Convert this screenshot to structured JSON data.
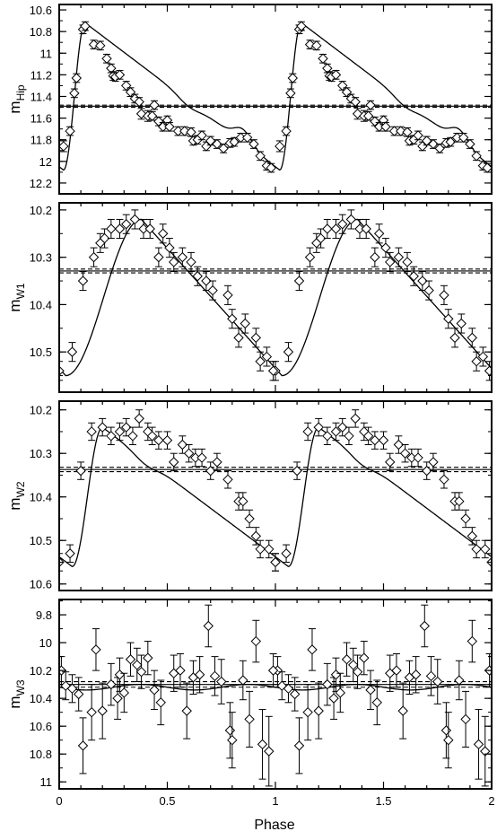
{
  "figure": {
    "xlabel": "Phase",
    "x_tick_labels": [
      "0",
      "0.5",
      "1",
      "1.5",
      "2"
    ]
  },
  "chart_data": [
    {
      "type": "scatter",
      "ylabel_main": "m",
      "ylabel_sub": "Hip",
      "xlim": [
        0,
        2
      ],
      "ylim": [
        12.3,
        10.55
      ],
      "y_inverted": true,
      "yticks": [
        10.6,
        10.8,
        11,
        11.2,
        11.4,
        11.6,
        11.8,
        12,
        12.2
      ],
      "ytick_labels": [
        "10.6",
        "10.8",
        "11",
        "11.2",
        "11.4",
        "11.6",
        "11.8",
        "12",
        "12.2"
      ],
      "mean_line": 11.49,
      "mean_band": 0.01,
      "curve": {
        "min_mag": 10.72,
        "max_mag": 12.08,
        "max_phase": 0.12,
        "rise_width": 0.1,
        "extra_bumps": [
          {
            "phase": 0.85,
            "amp": -0.12,
            "width": 0.04
          },
          {
            "phase": 0.6,
            "amp": 0.05,
            "width": 0.05
          }
        ]
      },
      "points": [
        [
          0.02,
          11.86,
          0.05
        ],
        [
          0.05,
          11.72,
          0.04
        ],
        [
          0.07,
          11.37,
          0.04
        ],
        [
          0.08,
          11.23,
          0.04
        ],
        [
          0.11,
          10.78,
          0.04
        ],
        [
          0.12,
          10.75,
          0.04
        ],
        [
          0.16,
          10.92,
          0.04
        ],
        [
          0.19,
          10.93,
          0.04
        ],
        [
          0.22,
          11.05,
          0.04
        ],
        [
          0.24,
          11.14,
          0.04
        ],
        [
          0.25,
          11.21,
          0.04
        ],
        [
          0.26,
          11.22,
          0.04
        ],
        [
          0.28,
          11.2,
          0.04
        ],
        [
          0.31,
          11.3,
          0.04
        ],
        [
          0.33,
          11.36,
          0.04
        ],
        [
          0.35,
          11.42,
          0.04
        ],
        [
          0.37,
          11.45,
          0.04
        ],
        [
          0.38,
          11.56,
          0.05
        ],
        [
          0.41,
          11.58,
          0.05
        ],
        [
          0.43,
          11.58,
          0.04
        ],
        [
          0.44,
          11.48,
          0.04
        ],
        [
          0.46,
          11.63,
          0.04
        ],
        [
          0.48,
          11.68,
          0.04
        ],
        [
          0.5,
          11.62,
          0.04
        ],
        [
          0.51,
          11.68,
          0.04
        ],
        [
          0.55,
          11.72,
          0.04
        ],
        [
          0.58,
          11.72,
          0.04
        ],
        [
          0.61,
          11.73,
          0.04
        ],
        [
          0.62,
          11.81,
          0.04
        ],
        [
          0.64,
          11.8,
          0.04
        ],
        [
          0.66,
          11.76,
          0.04
        ],
        [
          0.68,
          11.86,
          0.04
        ],
        [
          0.7,
          11.81,
          0.04
        ],
        [
          0.73,
          11.84,
          0.04
        ],
        [
          0.76,
          11.88,
          0.04
        ],
        [
          0.79,
          11.83,
          0.04
        ],
        [
          0.81,
          11.82,
          0.04
        ],
        [
          0.84,
          11.78,
          0.04
        ],
        [
          0.87,
          11.78,
          0.04
        ],
        [
          0.9,
          11.84,
          0.04
        ],
        [
          0.93,
          11.95,
          0.04
        ],
        [
          0.96,
          12.04,
          0.04
        ],
        [
          0.98,
          12.06,
          0.04
        ]
      ]
    },
    {
      "type": "scatter",
      "ylabel_main": "m",
      "ylabel_sub": "W1",
      "xlim": [
        0,
        2
      ],
      "ylim": [
        10.585,
        10.185
      ],
      "y_inverted": true,
      "yticks": [
        10.2,
        10.3,
        10.4,
        10.5
      ],
      "ytick_labels": [
        "10.2",
        "10.3",
        "10.4",
        "10.5"
      ],
      "mean_line": 10.329,
      "mean_band": 0.004,
      "curve": {
        "min_mag": 10.22,
        "max_mag": 10.55,
        "max_phase": 0.38,
        "rise_width": 0.35,
        "extra_bumps": []
      },
      "points": [
        [
          0.0,
          10.54,
          0.02
        ],
        [
          0.06,
          10.5,
          0.02
        ],
        [
          0.11,
          10.35,
          0.02
        ],
        [
          0.16,
          10.3,
          0.02
        ],
        [
          0.19,
          10.27,
          0.02
        ],
        [
          0.21,
          10.26,
          0.02
        ],
        [
          0.24,
          10.24,
          0.02
        ],
        [
          0.28,
          10.24,
          0.02
        ],
        [
          0.31,
          10.23,
          0.02
        ],
        [
          0.35,
          10.22,
          0.02
        ],
        [
          0.39,
          10.24,
          0.02
        ],
        [
          0.42,
          10.24,
          0.02
        ],
        [
          0.46,
          10.3,
          0.02
        ],
        [
          0.48,
          10.25,
          0.02
        ],
        [
          0.51,
          10.28,
          0.02
        ],
        [
          0.53,
          10.31,
          0.02
        ],
        [
          0.57,
          10.3,
          0.02
        ],
        [
          0.61,
          10.31,
          0.02
        ],
        [
          0.64,
          10.34,
          0.02
        ],
        [
          0.68,
          10.35,
          0.02
        ],
        [
          0.71,
          10.37,
          0.02
        ],
        [
          0.78,
          10.38,
          0.02
        ],
        [
          0.8,
          10.43,
          0.02
        ],
        [
          0.83,
          10.47,
          0.02
        ],
        [
          0.86,
          10.44,
          0.02
        ],
        [
          0.91,
          10.47,
          0.02
        ],
        [
          0.93,
          10.52,
          0.02
        ],
        [
          0.96,
          10.51,
          0.02
        ],
        [
          0.99,
          10.54,
          0.02
        ]
      ]
    },
    {
      "type": "scatter",
      "ylabel_main": "m",
      "ylabel_sub": "W2",
      "xlim": [
        0,
        2
      ],
      "ylim": [
        10.615,
        10.18
      ],
      "y_inverted": true,
      "yticks": [
        10.2,
        10.3,
        10.4,
        10.5,
        10.6
      ],
      "ytick_labels": [
        "10.2",
        "10.3",
        "10.4",
        "10.5",
        "10.6"
      ],
      "mean_line": 10.337,
      "mean_band": 0.005,
      "curve": {
        "min_mag": 10.24,
        "max_mag": 10.56,
        "max_phase": 0.2,
        "rise_width": 0.14,
        "extra_bumps": [
          {
            "phase": 0.4,
            "amp": 0.012,
            "width": 0.05
          }
        ]
      },
      "points": [
        [
          0.0,
          10.55,
          0.02
        ],
        [
          0.05,
          10.53,
          0.02
        ],
        [
          0.1,
          10.34,
          0.02
        ],
        [
          0.15,
          10.25,
          0.02
        ],
        [
          0.2,
          10.24,
          0.02
        ],
        [
          0.24,
          10.26,
          0.02
        ],
        [
          0.28,
          10.25,
          0.02
        ],
        [
          0.31,
          10.24,
          0.02
        ],
        [
          0.34,
          10.26,
          0.02
        ],
        [
          0.37,
          10.22,
          0.02
        ],
        [
          0.41,
          10.25,
          0.02
        ],
        [
          0.43,
          10.26,
          0.02
        ],
        [
          0.46,
          10.27,
          0.02
        ],
        [
          0.5,
          10.27,
          0.02
        ],
        [
          0.53,
          10.32,
          0.02
        ],
        [
          0.57,
          10.28,
          0.02
        ],
        [
          0.6,
          10.3,
          0.02
        ],
        [
          0.63,
          10.31,
          0.02
        ],
        [
          0.66,
          10.31,
          0.02
        ],
        [
          0.7,
          10.34,
          0.02
        ],
        [
          0.73,
          10.32,
          0.02
        ],
        [
          0.78,
          10.36,
          0.02
        ],
        [
          0.83,
          10.41,
          0.02
        ],
        [
          0.85,
          10.41,
          0.02
        ],
        [
          0.88,
          10.45,
          0.02
        ],
        [
          0.91,
          10.49,
          0.02
        ],
        [
          0.93,
          10.52,
          0.02
        ],
        [
          0.97,
          10.52,
          0.02
        ],
        [
          1.0,
          10.55,
          0.02
        ]
      ]
    },
    {
      "type": "scatter",
      "ylabel_main": "m",
      "ylabel_sub": "W3",
      "xlim": [
        0,
        2
      ],
      "ylim": [
        11.05,
        9.69
      ],
      "y_inverted": true,
      "yticks": [
        9.8,
        10,
        10.2,
        10.4,
        10.6,
        10.8,
        11
      ],
      "ytick_labels": [
        "9.8",
        "10",
        "10.2",
        "10.4",
        "10.6",
        "10.8",
        "11"
      ],
      "mean_line": 10.3,
      "mean_band": 0.02,
      "curve": {
        "type": "flat",
        "base": 10.32,
        "amp": 0.02
      },
      "points": [
        [
          0.01,
          10.2,
          0.1
        ],
        [
          0.03,
          10.31,
          0.1
        ],
        [
          0.06,
          10.33,
          0.1
        ],
        [
          0.09,
          10.37,
          0.12
        ],
        [
          0.11,
          10.74,
          0.2
        ],
        [
          0.15,
          10.5,
          0.2
        ],
        [
          0.17,
          10.05,
          0.15
        ],
        [
          0.2,
          10.49,
          0.2
        ],
        [
          0.24,
          10.3,
          0.15
        ],
        [
          0.27,
          10.4,
          0.15
        ],
        [
          0.28,
          10.23,
          0.12
        ],
        [
          0.3,
          10.36,
          0.14
        ],
        [
          0.33,
          10.12,
          0.12
        ],
        [
          0.36,
          10.16,
          0.12
        ],
        [
          0.38,
          10.21,
          0.12
        ],
        [
          0.41,
          10.11,
          0.12
        ],
        [
          0.44,
          10.34,
          0.14
        ],
        [
          0.47,
          10.43,
          0.16
        ],
        [
          0.53,
          10.22,
          0.13
        ],
        [
          0.56,
          10.2,
          0.12
        ],
        [
          0.59,
          10.49,
          0.2
        ],
        [
          0.62,
          10.25,
          0.12
        ],
        [
          0.65,
          10.23,
          0.13
        ],
        [
          0.69,
          9.88,
          0.15
        ],
        [
          0.72,
          10.24,
          0.14
        ],
        [
          0.75,
          10.28,
          0.16
        ],
        [
          0.79,
          10.63,
          0.2
        ],
        [
          0.8,
          10.7,
          0.2
        ],
        [
          0.85,
          10.27,
          0.14
        ],
        [
          0.88,
          10.55,
          0.2
        ],
        [
          0.91,
          9.99,
          0.15
        ],
        [
          0.94,
          10.73,
          0.25
        ],
        [
          0.97,
          10.78,
          0.25
        ],
        [
          0.99,
          10.2,
          0.12
        ]
      ]
    }
  ]
}
